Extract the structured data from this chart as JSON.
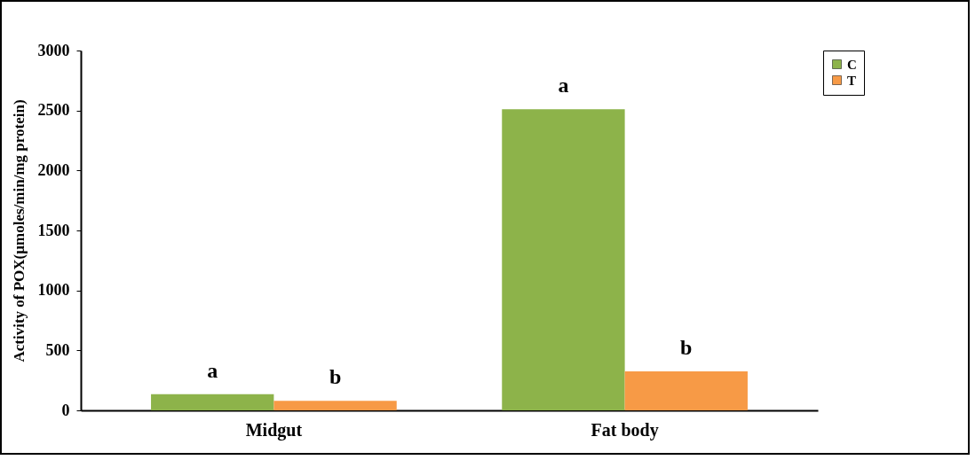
{
  "chart_data": {
    "type": "bar",
    "ylabel": "Activity of POX(µmoles/min/mg protein)",
    "categories": [
      "Midgut",
      "Fat body"
    ],
    "series": [
      {
        "name": "C",
        "color": "#8db34a",
        "values": [
          135,
          2510
        ],
        "value_labels": [
          "a",
          "a"
        ]
      },
      {
        "name": "T",
        "color": "#f79a46",
        "values": [
          80,
          325
        ],
        "value_labels": [
          "b",
          "b"
        ]
      }
    ],
    "ylim": [
      0,
      3000
    ],
    "yticks": [
      0,
      500,
      1000,
      1500,
      2000,
      2500,
      3000
    ],
    "grid": false,
    "legend": "top right"
  }
}
